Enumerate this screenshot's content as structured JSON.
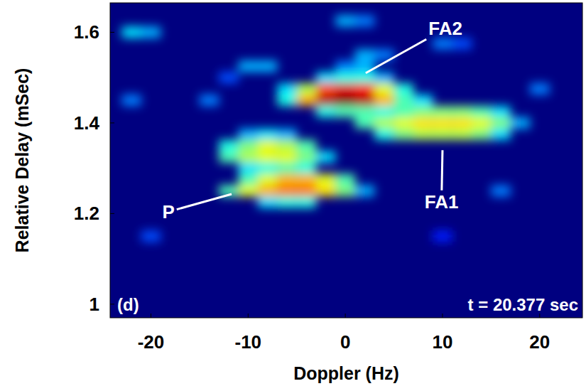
{
  "chart_data": {
    "type": "heatmap",
    "x_label": "Doppler (Hz)",
    "y_label": "Relative Delay (mSec)",
    "xlim": [
      -24.2,
      24.4
    ],
    "ylim": [
      0.97,
      1.665
    ],
    "xticks": [
      -20,
      -10,
      0,
      10,
      20
    ],
    "yticks": [
      1,
      1.2,
      1.4,
      1.6
    ],
    "color_range": [
      0,
      1
    ],
    "background": 0,
    "cell_size": [
      2,
      0.025
    ],
    "cells": [
      [
        -6,
        1.475,
        0.35
      ],
      [
        -4,
        1.475,
        0.55
      ],
      [
        -2,
        1.475,
        0.8
      ],
      [
        0,
        1.475,
        0.9
      ],
      [
        2,
        1.475,
        0.85
      ],
      [
        4,
        1.475,
        0.6
      ],
      [
        6,
        1.475,
        0.4
      ],
      [
        -6,
        1.45,
        0.4
      ],
      [
        -4,
        1.45,
        0.7
      ],
      [
        -2,
        1.45,
        0.95
      ],
      [
        0,
        1.45,
        1.0
      ],
      [
        2,
        1.45,
        0.95
      ],
      [
        4,
        1.45,
        0.7
      ],
      [
        6,
        1.45,
        0.45
      ],
      [
        8,
        1.45,
        0.35
      ],
      [
        -2,
        1.5,
        0.35
      ],
      [
        0,
        1.5,
        0.4
      ],
      [
        2,
        1.5,
        0.4
      ],
      [
        4,
        1.5,
        0.3
      ],
      [
        0,
        1.525,
        0.25
      ],
      [
        2,
        1.525,
        0.3
      ],
      [
        2,
        1.55,
        0.3
      ],
      [
        4,
        1.55,
        0.25
      ],
      [
        -2,
        1.425,
        0.4
      ],
      [
        0,
        1.425,
        0.45
      ],
      [
        2,
        1.425,
        0.45
      ],
      [
        4,
        1.425,
        0.4
      ],
      [
        6,
        1.425,
        0.45
      ],
      [
        8,
        1.425,
        0.5
      ],
      [
        10,
        1.425,
        0.5
      ],
      [
        12,
        1.425,
        0.5
      ],
      [
        14,
        1.425,
        0.45
      ],
      [
        16,
        1.425,
        0.35
      ],
      [
        2,
        1.4,
        0.45
      ],
      [
        4,
        1.4,
        0.55
      ],
      [
        6,
        1.4,
        0.6
      ],
      [
        8,
        1.4,
        0.65
      ],
      [
        10,
        1.4,
        0.65
      ],
      [
        12,
        1.4,
        0.65
      ],
      [
        14,
        1.4,
        0.6
      ],
      [
        16,
        1.4,
        0.5
      ],
      [
        18,
        1.4,
        0.3
      ],
      [
        4,
        1.375,
        0.4
      ],
      [
        6,
        1.375,
        0.5
      ],
      [
        8,
        1.375,
        0.55
      ],
      [
        10,
        1.375,
        0.55
      ],
      [
        12,
        1.375,
        0.55
      ],
      [
        14,
        1.375,
        0.5
      ],
      [
        16,
        1.375,
        0.35
      ],
      [
        -10,
        1.375,
        0.3
      ],
      [
        -8,
        1.375,
        0.35
      ],
      [
        -6,
        1.375,
        0.3
      ],
      [
        -12,
        1.35,
        0.4
      ],
      [
        -10,
        1.35,
        0.5
      ],
      [
        -8,
        1.35,
        0.6
      ],
      [
        -6,
        1.35,
        0.55
      ],
      [
        -4,
        1.35,
        0.45
      ],
      [
        -12,
        1.325,
        0.45
      ],
      [
        -10,
        1.325,
        0.55
      ],
      [
        -8,
        1.325,
        0.6
      ],
      [
        -6,
        1.325,
        0.6
      ],
      [
        -4,
        1.325,
        0.5
      ],
      [
        -2,
        1.325,
        0.35
      ],
      [
        -10,
        1.3,
        0.35
      ],
      [
        -8,
        1.3,
        0.4
      ],
      [
        -6,
        1.3,
        0.45
      ],
      [
        -4,
        1.3,
        0.4
      ],
      [
        -10,
        1.275,
        0.45
      ],
      [
        -8,
        1.275,
        0.6
      ],
      [
        -6,
        1.275,
        0.7
      ],
      [
        -4,
        1.275,
        0.7
      ],
      [
        -2,
        1.275,
        0.6
      ],
      [
        0,
        1.275,
        0.45
      ],
      [
        -12,
        1.25,
        0.45
      ],
      [
        -10,
        1.25,
        0.6
      ],
      [
        -8,
        1.25,
        0.7
      ],
      [
        -6,
        1.25,
        0.75
      ],
      [
        -4,
        1.25,
        0.75
      ],
      [
        -2,
        1.25,
        0.65
      ],
      [
        0,
        1.25,
        0.5
      ],
      [
        2,
        1.25,
        0.3
      ],
      [
        -8,
        1.225,
        0.35
      ],
      [
        -6,
        1.225,
        0.4
      ],
      [
        -4,
        1.225,
        0.4
      ],
      [
        -22,
        1.6,
        0.35
      ],
      [
        -20,
        1.6,
        0.3
      ],
      [
        -10,
        1.525,
        0.3
      ],
      [
        -8,
        1.525,
        0.3
      ],
      [
        -14,
        1.45,
        0.25
      ],
      [
        -22,
        1.45,
        0.25
      ],
      [
        10,
        1.575,
        0.25
      ],
      [
        12,
        1.575,
        0.2
      ],
      [
        0,
        1.625,
        0.3
      ],
      [
        2,
        1.625,
        0.25
      ],
      [
        20,
        1.475,
        0.25
      ],
      [
        16,
        1.25,
        0.25
      ],
      [
        -20,
        1.15,
        0.2
      ],
      [
        10,
        1.15,
        0.15
      ],
      [
        -12,
        1.5,
        0.2
      ]
    ],
    "annotations": [
      {
        "text": "P",
        "x": -18.2,
        "y": 1.204,
        "point": [
          -11.7,
          1.243
        ]
      },
      {
        "text": "FA1",
        "x": 9.9,
        "y": 1.226,
        "point": [
          10,
          1.34
        ]
      },
      {
        "text": "FA2",
        "x": 10.3,
        "y": 1.608,
        "point": [
          2.1,
          1.51
        ]
      }
    ],
    "panel": "(d)",
    "time_label": "t = 20.377 sec"
  }
}
